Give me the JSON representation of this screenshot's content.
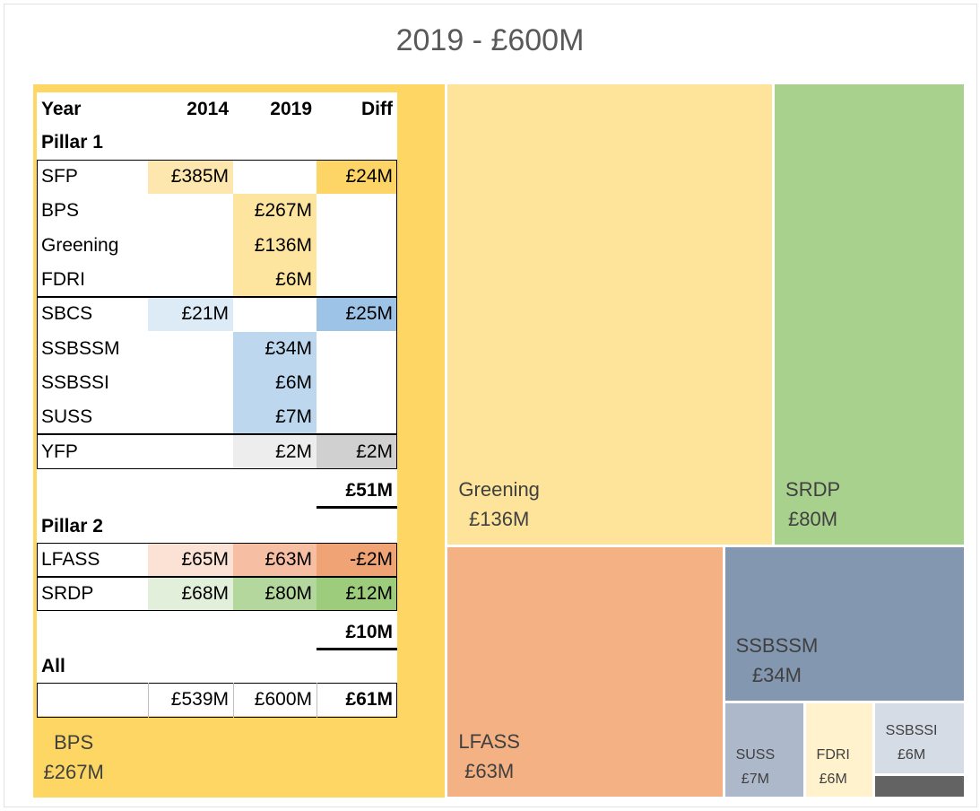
{
  "chart_data": {
    "type": "treemap",
    "title": "2019 - £600M",
    "categories": [
      "BPS",
      "Greening",
      "SRDP",
      "LFASS",
      "SSBSSM",
      "SUSS",
      "FDRI",
      "SSBSSI",
      null
    ],
    "values": [
      267,
      136,
      80,
      63,
      34,
      7,
      6,
      6,
      2
    ],
    "value_labels": [
      "£267M",
      "£136M",
      "£80M",
      "£63M",
      "£34M",
      "£7M",
      "£6M",
      "£6M",
      null
    ],
    "colors": [
      "#fdd663",
      "#fde49a",
      "#a9d18e",
      "#f4b183",
      "#8497b0",
      "#adb9ca",
      "#fff2cc",
      "#d6dce5",
      "#636363"
    ]
  },
  "table": {
    "header": [
      "Year",
      "2014",
      "2019",
      "Diff"
    ],
    "sections": [
      {
        "title": "Pillar 1",
        "groups": [
          [
            [
              "SFP",
              "£385M",
              null,
              "£24M"
            ],
            [
              "BPS",
              null,
              "£267M",
              null
            ],
            [
              "Greening",
              null,
              "£136M",
              null
            ],
            [
              "FDRI",
              null,
              "£6M",
              null
            ]
          ],
          [
            [
              "SBCS",
              "£21M",
              null,
              "£25M"
            ],
            [
              "SSBSSM",
              null,
              "£34M",
              null
            ],
            [
              "SSBSSI",
              null,
              "£6M",
              null
            ],
            [
              "SUSS",
              null,
              "£7M",
              null
            ]
          ],
          [
            [
              "YFP",
              null,
              "£2M",
              "£2M"
            ]
          ]
        ],
        "total": "£51M"
      },
      {
        "title": "Pillar 2",
        "groups": [
          [
            [
              "LFASS",
              "£65M",
              "£63M",
              "-£2M"
            ]
          ],
          [
            [
              "SRDP",
              "£68M",
              "£80M",
              "£12M"
            ]
          ]
        ],
        "total": "£10M"
      },
      {
        "title": "All",
        "groups": [
          [
            [
              null,
              "£539M",
              "£600M",
              "£61M"
            ]
          ]
        ]
      }
    ]
  }
}
